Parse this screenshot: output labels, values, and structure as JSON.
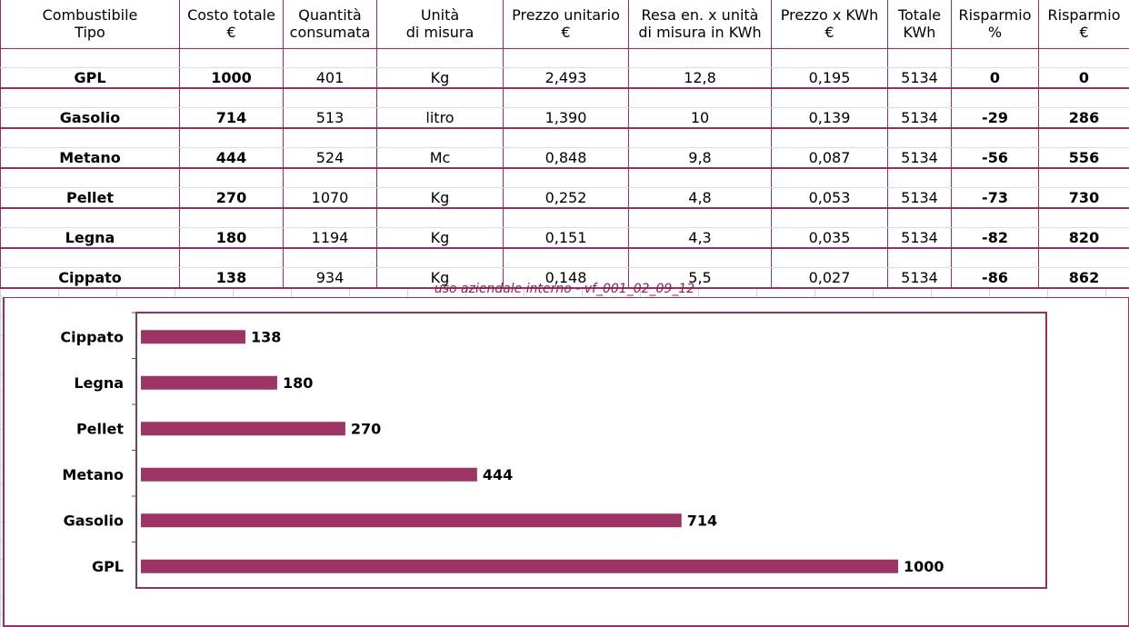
{
  "table": {
    "header_line1": [
      "Combustibile",
      "Costo totale",
      "Quantità",
      "Unità",
      "Prezzo unitario",
      "Resa en. x unità",
      "Prezzo x KWh",
      "Totale",
      "Risparmio",
      "Risparmio"
    ],
    "header_line2": [
      "Tipo",
      "€",
      "consumata",
      "di misura",
      "€",
      "di misura in KWh",
      "€",
      "KWh",
      "%",
      "€"
    ],
    "rows": [
      [
        "GPL",
        "1000",
        "401",
        "Kg",
        "2,493",
        "12,8",
        "0,195",
        "5134",
        "0",
        "0"
      ],
      [
        "Gasolio",
        "714",
        "513",
        "litro",
        "1,390",
        "10",
        "0,139",
        "5134",
        "-29",
        "286"
      ],
      [
        "Metano",
        "444",
        "524",
        "Mc",
        "0,848",
        "9,8",
        "0,087",
        "5134",
        "-56",
        "556"
      ],
      [
        "Pellet",
        "270",
        "1070",
        "Kg",
        "0,252",
        "4,8",
        "0,053",
        "5134",
        "-73",
        "730"
      ],
      [
        "Legna",
        "180",
        "1194",
        "Kg",
        "0,151",
        "4,3",
        "0,035",
        "5134",
        "-82",
        "820"
      ],
      [
        "Cippato",
        "138",
        "934",
        "Kg",
        "0,148",
        "5,5",
        "0,027",
        "5134",
        "-86",
        "862"
      ]
    ]
  },
  "note": "uso aziendale interno - vf_001_02_09_12",
  "colors": {
    "accent": "#9a2d63",
    "bar": "#9e3465"
  },
  "chart_data": {
    "type": "bar",
    "orientation": "horizontal",
    "categories": [
      "Cippato",
      "Legna",
      "Pellet",
      "Metano",
      "Gasolio",
      "GPL"
    ],
    "values": [
      138,
      180,
      270,
      444,
      714,
      1000
    ],
    "data_labels": [
      "138",
      "180",
      "270",
      "444",
      "714",
      "1000"
    ],
    "xlim": [
      0,
      1150
    ],
    "grid": false,
    "legend": "none"
  }
}
